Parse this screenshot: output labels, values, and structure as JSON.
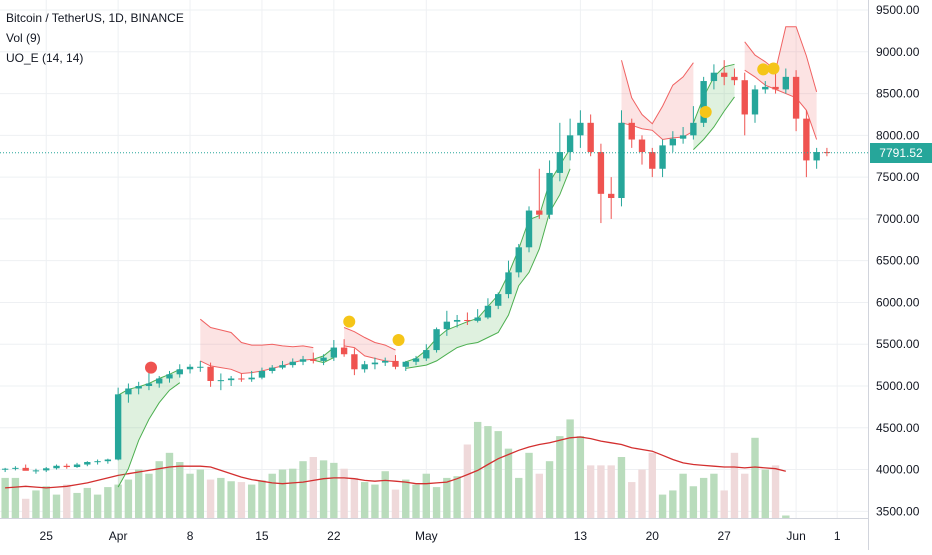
{
  "header": {
    "symbol_line": "Bitcoin / TetherUS, 1D, BINANCE",
    "volume_line": "Vol (9)",
    "indicator_line": "UO_E (14, 14)"
  },
  "last_price_label": "7791.52",
  "colors": {
    "up": "#26a69a",
    "down": "#ef5350",
    "vol_up": "#b9dcbc",
    "vol_down": "#efd9da",
    "vol_ma": "#d32f2f",
    "band_green": "#4caf50",
    "band_red": "#f06262",
    "dot_yellow": "#f5c518",
    "dot_red": "#ef5350",
    "grid": "#eef0f3"
  },
  "chart_data": {
    "type": "candlestick",
    "title": "Bitcoin / TetherUS, 1D, BINANCE",
    "y_axis": {
      "ticks": [
        3500,
        4000,
        4500,
        5000,
        5500,
        6000,
        6500,
        7000,
        7500,
        8000,
        8500,
        9000,
        9500
      ],
      "tick_labels": [
        "3500.00",
        "4000.00",
        "4500.00",
        "5000.00",
        "5500.00",
        "6000.00",
        "6500.00",
        "7000.00",
        "7500.00",
        "8000.00",
        "8500.00",
        "9000.00",
        "9500.00"
      ],
      "range": [
        3420,
        9620
      ]
    },
    "x_axis": {
      "tick_labels": [
        "25",
        "Apr",
        "8",
        "15",
        "22",
        "May",
        "13",
        "20",
        "27",
        "Jun",
        "1"
      ],
      "tick_day_index": [
        0,
        7,
        14,
        21,
        28,
        37,
        52,
        59,
        66,
        73,
        77
      ]
    },
    "x_range": [
      -4.5,
      80
    ],
    "last_price": 7791.52,
    "candles": [
      [
        -4,
        4000,
        4020,
        3970,
        4010
      ],
      [
        -3,
        4010,
        4040,
        3990,
        4020
      ],
      [
        -2,
        4020,
        4060,
        3995,
        3985
      ],
      [
        -1,
        3985,
        4010,
        3950,
        3990
      ],
      [
        0,
        3990,
        4030,
        3970,
        4015
      ],
      [
        1,
        4015,
        4060,
        4000,
        4045
      ],
      [
        2,
        4045,
        4070,
        4010,
        4030
      ],
      [
        3,
        4030,
        4080,
        4020,
        4060
      ],
      [
        4,
        4060,
        4100,
        4040,
        4090
      ],
      [
        5,
        4090,
        4120,
        4060,
        4100
      ],
      [
        6,
        4100,
        4130,
        4070,
        4120
      ],
      [
        7,
        4120,
        4980,
        4110,
        4900
      ],
      [
        8,
        4900,
        5030,
        4800,
        4970
      ],
      [
        9,
        4970,
        5050,
        4900,
        5000
      ],
      [
        10,
        5000,
        5200,
        4950,
        5030
      ],
      [
        11,
        5030,
        5120,
        4980,
        5090
      ],
      [
        12,
        5090,
        5180,
        5040,
        5140
      ],
      [
        13,
        5140,
        5260,
        5100,
        5200
      ],
      [
        14,
        5200,
        5260,
        5150,
        5230
      ],
      [
        15,
        5230,
        5300,
        5170,
        5230
      ],
      [
        16,
        5230,
        5280,
        4990,
        5060
      ],
      [
        17,
        5060,
        5150,
        4950,
        5070
      ],
      [
        18,
        5070,
        5120,
        5000,
        5090
      ],
      [
        19,
        5090,
        5150,
        5050,
        5080
      ],
      [
        20,
        5080,
        5180,
        5050,
        5100
      ],
      [
        21,
        5100,
        5220,
        5080,
        5180
      ],
      [
        22,
        5180,
        5250,
        5150,
        5220
      ],
      [
        23,
        5220,
        5300,
        5200,
        5250
      ],
      [
        24,
        5250,
        5330,
        5220,
        5290
      ],
      [
        25,
        5290,
        5360,
        5250,
        5320
      ],
      [
        26,
        5320,
        5400,
        5270,
        5300
      ],
      [
        27,
        5300,
        5380,
        5250,
        5340
      ],
      [
        28,
        5340,
        5550,
        5300,
        5460
      ],
      [
        29,
        5460,
        5560,
        5350,
        5380
      ],
      [
        30,
        5380,
        5450,
        5130,
        5200
      ],
      [
        31,
        5200,
        5300,
        5160,
        5260
      ],
      [
        32,
        5260,
        5340,
        5200,
        5280
      ],
      [
        33,
        5280,
        5340,
        5240,
        5300
      ],
      [
        34,
        5300,
        5370,
        5200,
        5230
      ],
      [
        35,
        5230,
        5300,
        5180,
        5290
      ],
      [
        36,
        5290,
        5360,
        5250,
        5330
      ],
      [
        37,
        5330,
        5500,
        5300,
        5430
      ],
      [
        38,
        5430,
        5700,
        5400,
        5680
      ],
      [
        39,
        5680,
        5900,
        5600,
        5770
      ],
      [
        40,
        5770,
        5850,
        5700,
        5790
      ],
      [
        41,
        5790,
        5880,
        5730,
        5780
      ],
      [
        42,
        5780,
        5920,
        5760,
        5820
      ],
      [
        43,
        5820,
        6050,
        5800,
        5960
      ],
      [
        44,
        5960,
        6120,
        5920,
        6100
      ],
      [
        45,
        6100,
        6500,
        6050,
        6360
      ],
      [
        46,
        6360,
        6700,
        6300,
        6660
      ],
      [
        47,
        6660,
        7150,
        6600,
        7100
      ],
      [
        48,
        7100,
        7600,
        7000,
        7050
      ],
      [
        49,
        7050,
        7700,
        7000,
        7550
      ],
      [
        50,
        7550,
        8150,
        7450,
        7800
      ],
      [
        51,
        7800,
        8200,
        7700,
        8000
      ],
      [
        52,
        8000,
        8300,
        7850,
        8150
      ],
      [
        53,
        8150,
        8250,
        7750,
        7800
      ],
      [
        54,
        7800,
        7900,
        6950,
        7300
      ],
      [
        55,
        7300,
        7500,
        7000,
        7250
      ],
      [
        56,
        7250,
        8300,
        7150,
        8150
      ],
      [
        57,
        8150,
        8200,
        7850,
        7950
      ],
      [
        58,
        7950,
        8000,
        7650,
        7800
      ],
      [
        59,
        7800,
        7850,
        7500,
        7600
      ],
      [
        60,
        7600,
        7950,
        7500,
        7880
      ],
      [
        61,
        7880,
        8050,
        7800,
        7960
      ],
      [
        62,
        7960,
        8100,
        7900,
        8000
      ],
      [
        63,
        8000,
        8350,
        7950,
        8150
      ],
      [
        64,
        8150,
        8700,
        8100,
        8650
      ],
      [
        65,
        8650,
        8850,
        8550,
        8750
      ],
      [
        66,
        8750,
        8900,
        8600,
        8700
      ],
      [
        67,
        8700,
        8800,
        8600,
        8660
      ],
      [
        68,
        8660,
        8750,
        8000,
        8250
      ],
      [
        69,
        8250,
        8600,
        8150,
        8550
      ],
      [
        70,
        8550,
        8650,
        8500,
        8580
      ],
      [
        71,
        8580,
        8750,
        8500,
        8550
      ],
      [
        72,
        8550,
        8800,
        8500,
        8700
      ],
      [
        73,
        8700,
        8780,
        8050,
        8200
      ],
      [
        74,
        8200,
        8300,
        7500,
        7700
      ],
      [
        75,
        7700,
        7850,
        7600,
        7800
      ],
      [
        76,
        7800,
        7850,
        7750,
        7790
      ]
    ],
    "volume": {
      "values": [
        3900,
        3900,
        3650,
        3750,
        3800,
        3700,
        3820,
        3720,
        3780,
        3700,
        3790,
        3820,
        3880,
        4000,
        3950,
        4100,
        4200,
        4090,
        3950,
        4000,
        3880,
        3900,
        3860,
        3850,
        3820,
        3870,
        3950,
        4000,
        4010,
        4100,
        4150,
        4110,
        4080,
        4010,
        3900,
        3850,
        3820,
        3980,
        3760,
        3880,
        3820,
        3950,
        3790,
        3900,
        3920,
        4300,
        4570,
        4520,
        4460,
        4250,
        3900,
        4200,
        3950,
        4100,
        4400,
        4600,
        4400,
        4050,
        4050,
        4050,
        4150,
        3850,
        4000,
        4200,
        3700,
        3750,
        3950,
        3800,
        3900,
        3950,
        3750,
        4200,
        3950,
        4380,
        4000,
        4050,
        3450
      ],
      "axis_range": [
        3420,
        9620
      ]
    },
    "volume_ma": [
      3780,
      3790,
      3800,
      3790,
      3780,
      3790,
      3800,
      3820,
      3840,
      3870,
      3900,
      3930,
      3950,
      3970,
      3990,
      4010,
      4030,
      4040,
      4040,
      4040,
      4030,
      3990,
      3950,
      3910,
      3880,
      3860,
      3840,
      3830,
      3840,
      3850,
      3870,
      3890,
      3900,
      3900,
      3890,
      3870,
      3860,
      3870,
      3860,
      3850,
      3830,
      3830,
      3840,
      3850,
      3890,
      3940,
      3990,
      4060,
      4130,
      4180,
      4230,
      4270,
      4300,
      4320,
      4350,
      4380,
      4390,
      4370,
      4340,
      4320,
      4300,
      4260,
      4240,
      4220,
      4170,
      4120,
      4080,
      4060,
      4050,
      4040,
      4030,
      4030,
      4020,
      4030,
      4020,
      4010,
      3980
    ],
    "bands": [
      {
        "color": "green",
        "upper": [
          [
            7,
            4890
          ],
          [
            8,
            4960
          ],
          [
            9,
            4990
          ],
          [
            10,
            5030
          ],
          [
            11,
            5090
          ],
          [
            12,
            5140
          ],
          [
            13,
            5200
          ]
        ],
        "lower": [
          [
            7,
            3790
          ],
          [
            8,
            4010
          ],
          [
            9,
            4350
          ],
          [
            10,
            4600
          ],
          [
            11,
            4800
          ],
          [
            12,
            4950
          ],
          [
            13,
            5040
          ]
        ]
      },
      {
        "color": "red",
        "upper": [
          [
            15,
            5800
          ],
          [
            16,
            5700
          ],
          [
            17,
            5670
          ],
          [
            18,
            5640
          ],
          [
            19,
            5520
          ],
          [
            20,
            5490
          ],
          [
            21,
            5490
          ],
          [
            22,
            5500
          ],
          [
            23,
            5480
          ],
          [
            24,
            5470
          ],
          [
            25,
            5480
          ],
          [
            26,
            5460
          ]
        ],
        "lower": [
          [
            15,
            5300
          ],
          [
            16,
            5240
          ],
          [
            17,
            5220
          ],
          [
            18,
            5200
          ],
          [
            19,
            5150
          ],
          [
            20,
            5160
          ],
          [
            21,
            5180
          ],
          [
            22,
            5210
          ],
          [
            23,
            5240
          ],
          [
            24,
            5280
          ],
          [
            25,
            5310
          ],
          [
            26,
            5320
          ]
        ]
      },
      {
        "color": "green",
        "upper": [
          [
            26,
            5320
          ],
          [
            27,
            5360
          ],
          [
            28,
            5460
          ]
        ],
        "lower": [
          [
            26,
            5310
          ],
          [
            27,
            5280
          ],
          [
            28,
            5340
          ]
        ]
      },
      {
        "color": "red",
        "upper": [
          [
            29,
            5700
          ],
          [
            30,
            5650
          ],
          [
            31,
            5580
          ],
          [
            32,
            5520
          ],
          [
            33,
            5490
          ],
          [
            34,
            5430
          ]
        ],
        "lower": [
          [
            29,
            5480
          ],
          [
            30,
            5460
          ],
          [
            31,
            5360
          ],
          [
            32,
            5330
          ],
          [
            33,
            5300
          ],
          [
            34,
            5290
          ]
        ]
      },
      {
        "color": "green",
        "upper": [
          [
            35,
            5290
          ],
          [
            36,
            5330
          ],
          [
            37,
            5430
          ],
          [
            38,
            5570
          ],
          [
            39,
            5670
          ],
          [
            40,
            5720
          ],
          [
            41,
            5770
          ],
          [
            42,
            5810
          ],
          [
            43,
            5950
          ],
          [
            44,
            6090
          ],
          [
            45,
            6340
          ],
          [
            46,
            6640
          ],
          [
            47,
            6990
          ],
          [
            48,
            7040
          ],
          [
            49,
            7440
          ],
          [
            50,
            7640
          ],
          [
            51,
            7840
          ]
        ],
        "lower": [
          [
            35,
            5210
          ],
          [
            36,
            5230
          ],
          [
            37,
            5250
          ],
          [
            38,
            5300
          ],
          [
            39,
            5380
          ],
          [
            40,
            5460
          ],
          [
            41,
            5500
          ],
          [
            42,
            5520
          ],
          [
            43,
            5580
          ],
          [
            44,
            5640
          ],
          [
            45,
            5850
          ],
          [
            46,
            6200
          ],
          [
            47,
            6360
          ],
          [
            48,
            6640
          ],
          [
            49,
            7080
          ],
          [
            50,
            7290
          ],
          [
            51,
            7600
          ]
        ]
      },
      {
        "color": "red",
        "upper": [
          [
            56,
            8900
          ],
          [
            57,
            8450
          ],
          [
            58,
            8250
          ],
          [
            59,
            8140
          ],
          [
            60,
            8350
          ],
          [
            61,
            8600
          ],
          [
            62,
            8700
          ],
          [
            63,
            8870
          ]
        ],
        "lower": [
          [
            56,
            8150
          ],
          [
            57,
            8120
          ],
          [
            58,
            8080
          ],
          [
            59,
            8060
          ],
          [
            60,
            7950
          ],
          [
            61,
            7970
          ],
          [
            62,
            7980
          ],
          [
            63,
            8050
          ]
        ]
      },
      {
        "color": "green",
        "upper": [
          [
            63,
            8150
          ],
          [
            64,
            8460
          ],
          [
            65,
            8700
          ],
          [
            66,
            8820
          ],
          [
            67,
            8850
          ]
        ],
        "lower": [
          [
            63,
            7830
          ],
          [
            64,
            7950
          ],
          [
            65,
            8100
          ],
          [
            66,
            8290
          ],
          [
            67,
            8460
          ]
        ]
      },
      {
        "color": "red",
        "upper": [
          [
            68,
            9120
          ],
          [
            69,
            8960
          ],
          [
            70,
            8880
          ],
          [
            71,
            8780
          ],
          [
            72,
            9300
          ],
          [
            73,
            9300
          ],
          [
            74,
            8950
          ],
          [
            75,
            8520
          ]
        ],
        "lower": [
          [
            68,
            8780
          ],
          [
            69,
            8700
          ],
          [
            70,
            8600
          ],
          [
            71,
            8550
          ],
          [
            72,
            8500
          ],
          [
            73,
            8450
          ],
          [
            74,
            8300
          ],
          [
            75,
            7950
          ]
        ]
      }
    ],
    "markers": [
      {
        "i": 10.2,
        "v": 5220,
        "color": "red"
      },
      {
        "i": 29.5,
        "v": 5770,
        "color": "yellow"
      },
      {
        "i": 34.3,
        "v": 5550,
        "color": "yellow"
      },
      {
        "i": 64.2,
        "v": 8280,
        "color": "yellow"
      },
      {
        "i": 69.8,
        "v": 8790,
        "color": "yellow"
      },
      {
        "i": 70.8,
        "v": 8800,
        "color": "yellow"
      }
    ]
  }
}
